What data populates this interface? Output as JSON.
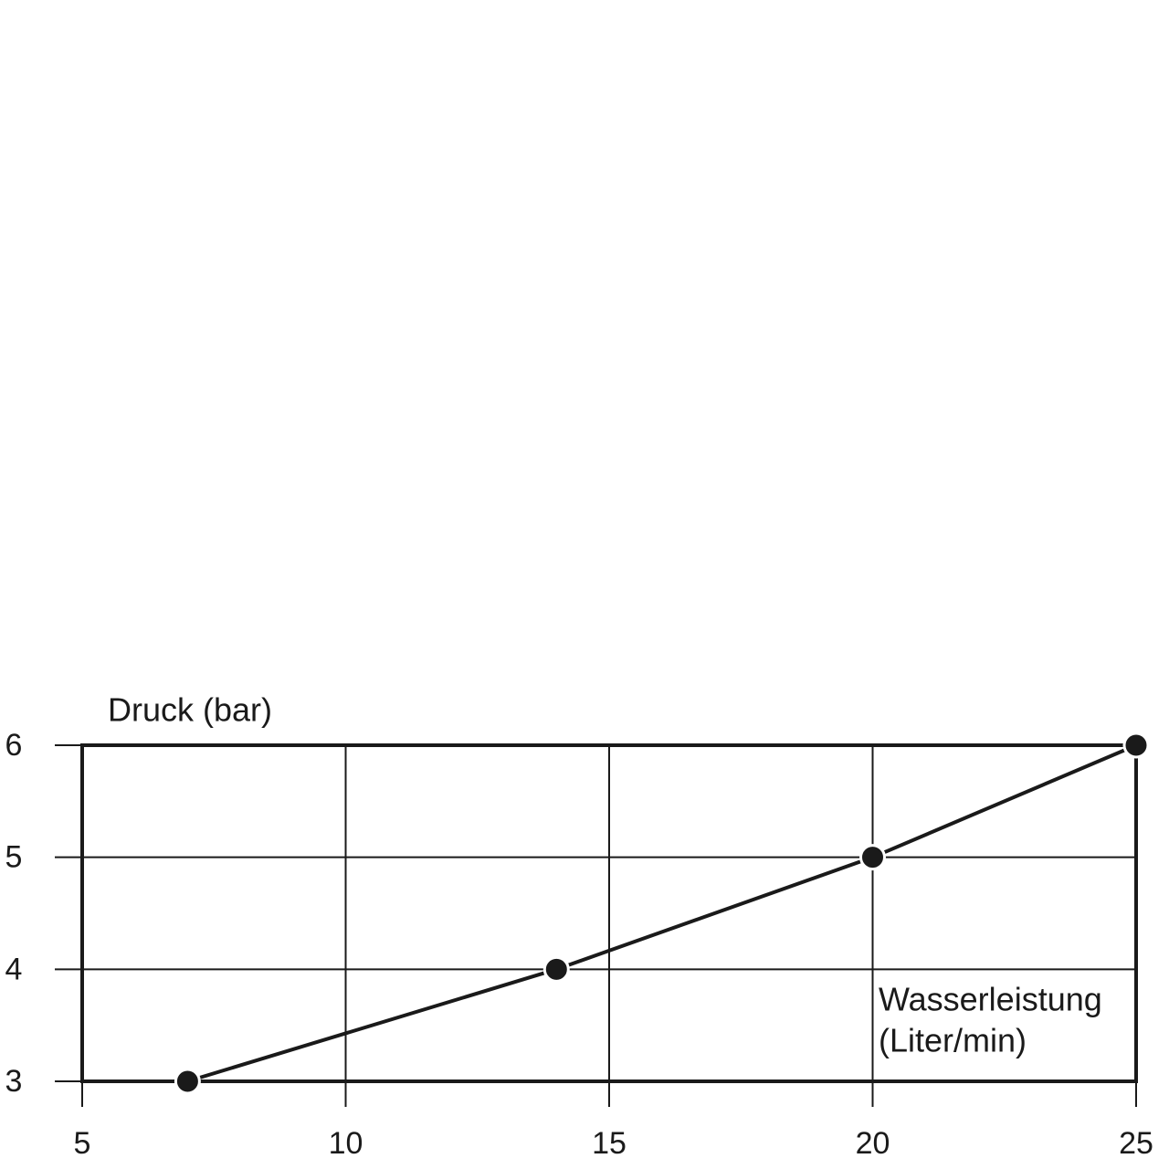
{
  "chart_data": {
    "type": "line",
    "ylabel": "Druck (bar)",
    "xlabel": [
      "Wasserleistung",
      "(Liter/min)"
    ],
    "x": [
      7,
      14,
      20,
      25
    ],
    "values": [
      3,
      4,
      5,
      6
    ],
    "color": "#1a1a1a",
    "xlim": [
      5,
      25
    ],
    "xticks": [
      5,
      10,
      15,
      20,
      25
    ],
    "ylim": [
      3,
      6
    ],
    "yticks": [
      3,
      4,
      5,
      6
    ],
    "grid": true
  }
}
